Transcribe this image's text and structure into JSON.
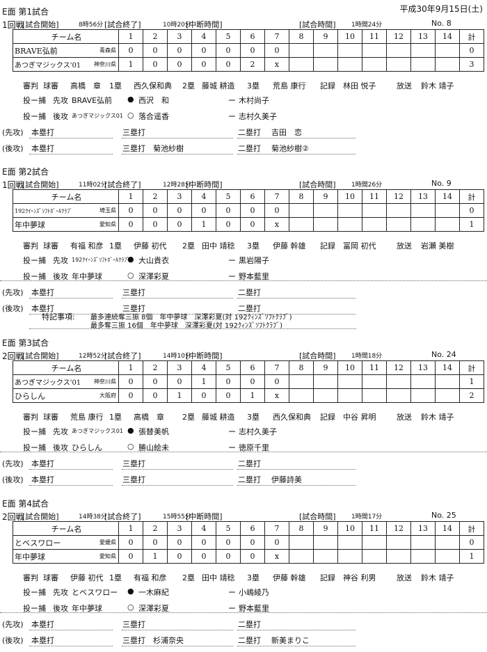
{
  "date": "平成30年9月15日(土)",
  "labels": {
    "start": "[試合開始]",
    "end": "[試合終了]",
    "suspend": "[中断時間]",
    "duration": "[試合時間]",
    "team_header": "チーム名",
    "total_header": "計",
    "innings": [
      "1",
      "2",
      "3",
      "4",
      "5",
      "6",
      "7",
      "8",
      "9",
      "10",
      "11",
      "12",
      "13",
      "14"
    ],
    "umpire": "審判",
    "plate": "球審",
    "first": "1塁",
    "second": "2塁",
    "third": "3塁",
    "record": "記録",
    "broadcast": "放送",
    "battery": "投ー捕",
    "top": "先攻",
    "bottom": "後攻",
    "dash": "ー",
    "top_paren": "(先攻)",
    "bottom_paren": "(後攻)",
    "hr": "本塁打",
    "triple": "三塁打",
    "double": "二塁打",
    "notes": "特記事項:",
    "winner_mark": "●",
    "loser_mark": "○"
  },
  "games": [
    {
      "title": "E面 第1試合",
      "round": "1回戦",
      "start": "8時56分",
      "end": "10時20分",
      "suspend": "",
      "duration": "1時間24分",
      "no": "No. 8",
      "teams": [
        {
          "name": "BRAVE弘前",
          "pref": "青森県",
          "scores": [
            "0",
            "0",
            "0",
            "0",
            "0",
            "0",
            "0",
            "",
            "",
            "",
            "",
            "",
            "",
            ""
          ],
          "total": "0"
        },
        {
          "name": "あつぎマジックス'01",
          "pref": "神奈川県",
          "scores": [
            "1",
            "0",
            "0",
            "0",
            "0",
            "2",
            "x",
            "",
            "",
            "",
            "",
            "",
            "",
            ""
          ],
          "total": "3"
        }
      ],
      "umpires": {
        "plate": "高橋　章",
        "first": "西久保和典",
        "second": "藤城 耕造",
        "third": "荒島 康行",
        "record": "林田 悦子",
        "broadcast": "鈴木 靖子"
      },
      "battery": [
        {
          "team": "BRAVE弘前",
          "mark": "●",
          "pitcher": "西沢　和",
          "catcher": "木村尚子"
        },
        {
          "team": "あつぎマジックス01",
          "mark": "○",
          "pitcher": "落合遥香",
          "catcher": "志村久美子"
        }
      ],
      "hits": [
        {
          "hr": "",
          "triple": "",
          "double": "吉田　恋"
        },
        {
          "hr": "",
          "triple": "菊池紗樹",
          "double": "菊池紗樹②"
        }
      ],
      "notes": []
    },
    {
      "title": "E面 第2試合",
      "round": "1回戦",
      "start": "11時02分",
      "end": "12時28分",
      "suspend": "",
      "duration": "1時間26分",
      "no": "No. 9",
      "teams": [
        {
          "name": "192ｸｲｰﾝｽﾞｿﾌﾄﾎﾞｰﾙｸﾗﾌﾞ",
          "pref": "埼玉県",
          "scores": [
            "0",
            "0",
            "0",
            "0",
            "0",
            "0",
            "0",
            "",
            "",
            "",
            "",
            "",
            "",
            ""
          ],
          "total": "0"
        },
        {
          "name": "年中夢球",
          "pref": "愛知県",
          "scores": [
            "0",
            "0",
            "0",
            "1",
            "0",
            "0",
            "x",
            "",
            "",
            "",
            "",
            "",
            "",
            ""
          ],
          "total": "1"
        }
      ],
      "umpires": {
        "plate": "有福 和彦",
        "first": "伊藤 初代",
        "second": "田中 靖稔",
        "third": "伊藤 幹雄",
        "record": "冨岡 初代",
        "broadcast": "岩瀬 美樹"
      },
      "battery": [
        {
          "team": "192ｸｲｰﾝｽﾞｿﾌﾄﾎﾞｰﾙｸﾗﾌﾞ",
          "mark": "●",
          "pitcher": "大山貴衣",
          "catcher": "黒岩陽子"
        },
        {
          "team": "年中夢球",
          "mark": "○",
          "pitcher": "深澤彩夏",
          "catcher": "野本藍里"
        }
      ],
      "hits": [
        {
          "hr": "",
          "triple": "",
          "double": ""
        },
        {
          "hr": "",
          "triple": "",
          "double": ""
        }
      ],
      "notes": [
        "最多連続奪三振 8個　年中夢球　深澤彩夏(対 192ｸｨﾝｽﾞｿﾌﾄｸﾗﾌﾞ)",
        "最多奪三振 16個　年中夢球　深澤彩夏(対 192ｸｨﾝｽﾞｿﾌﾄｸﾗﾌﾞ)"
      ]
    },
    {
      "title": "E面 第3試合",
      "round": "2回戦",
      "start": "12時52分",
      "end": "14時10分",
      "suspend": "",
      "duration": "1時間18分",
      "no": "No. 24",
      "teams": [
        {
          "name": "あつぎマジックス'01",
          "pref": "神奈川県",
          "scores": [
            "0",
            "0",
            "0",
            "1",
            "0",
            "0",
            "0",
            "",
            "",
            "",
            "",
            "",
            "",
            ""
          ],
          "total": "1"
        },
        {
          "name": "ひらしん",
          "pref": "大阪府",
          "scores": [
            "0",
            "0",
            "1",
            "0",
            "0",
            "1",
            "x",
            "",
            "",
            "",
            "",
            "",
            "",
            ""
          ],
          "total": "2"
        }
      ],
      "umpires": {
        "plate": "荒島 康行",
        "first": "高橋　章",
        "second": "藤城 耕造",
        "third": "西久保和典",
        "record": "中谷 昇明",
        "broadcast": "鈴木 靖子"
      },
      "battery": [
        {
          "team": "あつぎマジックス01",
          "mark": "●",
          "pitcher": "張替美帆",
          "catcher": "志村久美子"
        },
        {
          "team": "ひらしん",
          "mark": "○",
          "pitcher": "勝山絵未",
          "catcher": "徳原千里"
        }
      ],
      "hits": [
        {
          "hr": "",
          "triple": "",
          "double": ""
        },
        {
          "hr": "",
          "triple": "",
          "double": "伊藤詩美"
        }
      ],
      "notes": []
    },
    {
      "title": "E面 第4試合",
      "round": "2回戦",
      "start": "14時38分",
      "end": "15時55分",
      "suspend": "",
      "duration": "1時間17分",
      "no": "No. 25",
      "teams": [
        {
          "name": "とベスワロー",
          "pref": "愛媛県",
          "scores": [
            "0",
            "0",
            "0",
            "0",
            "0",
            "0",
            "0",
            "",
            "",
            "",
            "",
            "",
            "",
            ""
          ],
          "total": "0"
        },
        {
          "name": "年中夢球",
          "pref": "愛知県",
          "scores": [
            "0",
            "1",
            "0",
            "0",
            "0",
            "0",
            "x",
            "",
            "",
            "",
            "",
            "",
            "",
            ""
          ],
          "total": "1"
        }
      ],
      "umpires": {
        "plate": "伊藤 初代",
        "first": "有福 和彦",
        "second": "田中 靖稔",
        "third": "伊藤 幹雄",
        "record": "神谷 利男",
        "broadcast": "鈴木 靖子"
      },
      "battery": [
        {
          "team": "とベスワロー",
          "mark": "●",
          "pitcher": "一木麻紀",
          "catcher": "小嶋綾乃"
        },
        {
          "team": "年中夢球",
          "mark": "○",
          "pitcher": "深澤彩夏",
          "catcher": "野本藍里"
        }
      ],
      "hits": [
        {
          "hr": "",
          "triple": "",
          "double": ""
        },
        {
          "hr": "",
          "triple": "杉浦奈央",
          "double": "新美まりこ"
        }
      ],
      "notes": []
    }
  ]
}
